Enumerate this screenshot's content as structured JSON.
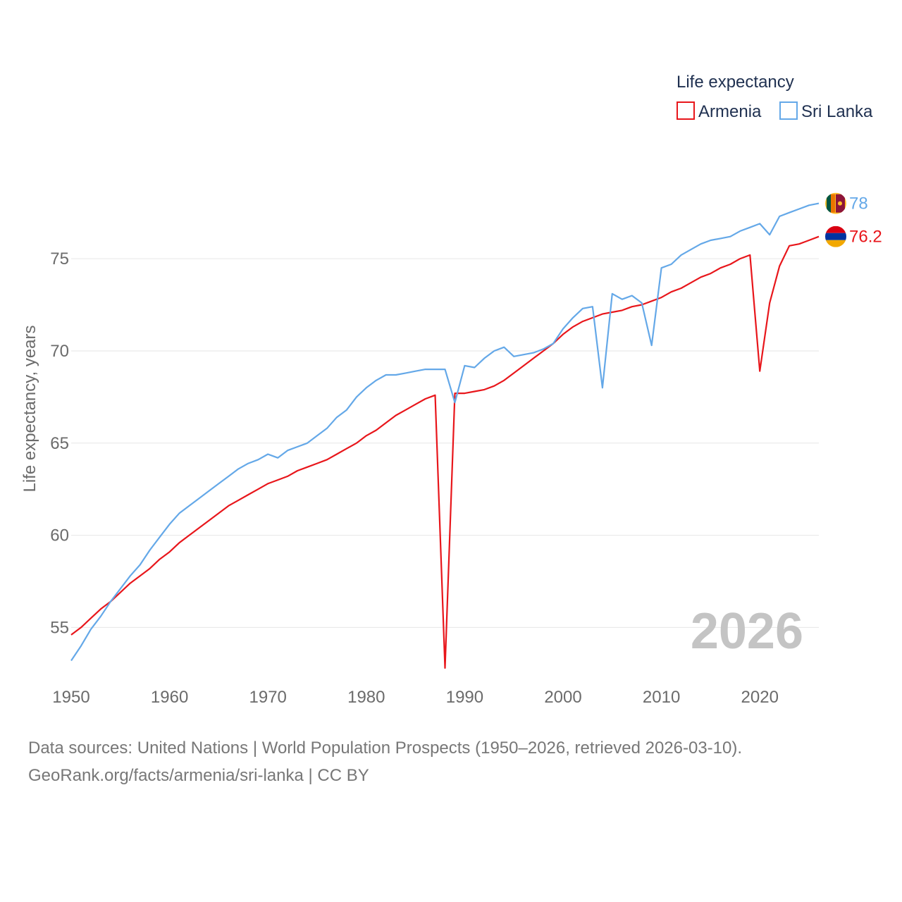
{
  "chart_data": {
    "type": "line",
    "legend_title": "Life expectancy",
    "ylabel": "Life expectancy, years",
    "xlim": [
      1950,
      2026
    ],
    "ylim": [
      51.5,
      80.7
    ],
    "x_ticks": [
      1950,
      1960,
      1970,
      1980,
      1990,
      2000,
      2010,
      2020
    ],
    "y_ticks": [
      55,
      60,
      65,
      70,
      75
    ],
    "grid": true,
    "current_year_label": "2026",
    "x": [
      1950,
      1951,
      1952,
      1953,
      1954,
      1955,
      1956,
      1957,
      1958,
      1959,
      1960,
      1961,
      1962,
      1963,
      1964,
      1965,
      1966,
      1967,
      1968,
      1969,
      1970,
      1971,
      1972,
      1973,
      1974,
      1975,
      1976,
      1977,
      1978,
      1979,
      1980,
      1981,
      1982,
      1983,
      1984,
      1985,
      1986,
      1987,
      1988,
      1989,
      1990,
      1991,
      1992,
      1993,
      1994,
      1995,
      1996,
      1997,
      1998,
      1999,
      2000,
      2001,
      2002,
      2003,
      2004,
      2005,
      2006,
      2007,
      2008,
      2009,
      2010,
      2011,
      2012,
      2013,
      2014,
      2015,
      2016,
      2017,
      2018,
      2019,
      2020,
      2021,
      2022,
      2023,
      2024,
      2025,
      2026
    ],
    "series": [
      {
        "name": "Armenia",
        "color": "#e8161b",
        "end_label": "76.2",
        "flag": "armenia-flag",
        "values": [
          54.6,
          55.0,
          55.5,
          56.0,
          56.4,
          56.9,
          57.4,
          57.8,
          58.2,
          58.7,
          59.1,
          59.6,
          60.0,
          60.4,
          60.8,
          61.2,
          61.6,
          61.9,
          62.2,
          62.5,
          62.8,
          63.0,
          63.2,
          63.5,
          63.7,
          63.9,
          64.1,
          64.4,
          64.7,
          65.0,
          65.4,
          65.7,
          66.1,
          66.5,
          66.8,
          67.1,
          67.4,
          67.6,
          52.8,
          67.7,
          67.7,
          67.8,
          67.9,
          68.1,
          68.4,
          68.8,
          69.2,
          69.6,
          70.0,
          70.4,
          70.9,
          71.3,
          71.6,
          71.8,
          72.0,
          72.1,
          72.2,
          72.4,
          72.5,
          72.7,
          72.9,
          73.2,
          73.4,
          73.7,
          74.0,
          74.2,
          74.5,
          74.7,
          75.0,
          75.2,
          68.9,
          72.6,
          74.6,
          75.7,
          75.8,
          76.0,
          76.2
        ]
      },
      {
        "name": "Sri Lanka",
        "color": "#64a8e8",
        "end_label": "78",
        "flag": "sri-lanka-flag",
        "values": [
          53.2,
          54.0,
          54.9,
          55.6,
          56.4,
          57.1,
          57.8,
          58.4,
          59.2,
          59.9,
          60.6,
          61.2,
          61.6,
          62.0,
          62.4,
          62.8,
          63.2,
          63.6,
          63.9,
          64.1,
          64.4,
          64.2,
          64.6,
          64.8,
          65.0,
          65.4,
          65.8,
          66.4,
          66.8,
          67.5,
          68.0,
          68.4,
          68.7,
          68.7,
          68.8,
          68.9,
          69.0,
          69.0,
          69.0,
          67.2,
          69.2,
          69.1,
          69.6,
          70.0,
          70.2,
          69.7,
          69.8,
          69.9,
          70.1,
          70.4,
          71.2,
          71.8,
          72.3,
          72.4,
          68.0,
          73.1,
          72.8,
          73.0,
          72.6,
          70.3,
          74.5,
          74.7,
          75.2,
          75.5,
          75.8,
          76.0,
          76.1,
          76.2,
          76.5,
          76.7,
          76.9,
          76.3,
          77.3,
          77.5,
          77.7,
          77.9,
          78.0
        ]
      }
    ]
  },
  "footer": {
    "source_line": "Data sources: United Nations | World Population Prospects (1950–2026, retrieved 2026-03-10).",
    "credit_line": "GeoRank.org/facts/armenia/sri-lanka | CC BY"
  }
}
